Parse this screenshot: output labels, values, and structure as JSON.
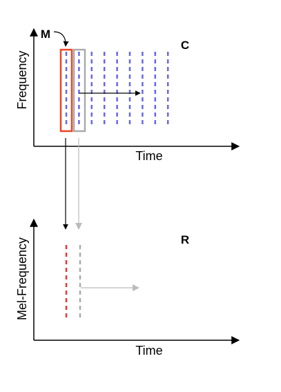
{
  "top_panel": {
    "y_axis_label": "Frequency",
    "x_axis_label": "Time",
    "matrix_label": "C",
    "frame_label": "M"
  },
  "bottom_panel": {
    "y_axis_label": "Mel-Frequency",
    "x_axis_label": "Time",
    "matrix_label": "R"
  },
  "colors": {
    "spectrogram_columns": "#6666ee",
    "current_frame": "#ee4422",
    "next_frame": "#aaaaaa",
    "mel_column_current": "#ee3333",
    "mel_column_next": "#aaaaaa",
    "axis": "#000000",
    "arrow_secondary": "#bbbbbb"
  }
}
